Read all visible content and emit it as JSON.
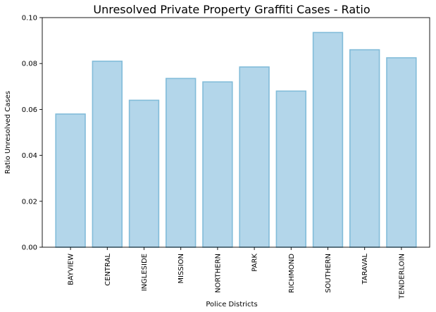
{
  "chart_data": {
    "type": "bar",
    "title": "Unresolved Private Property Graffiti Cases - Ratio",
    "xlabel": "Police Districts",
    "ylabel": "Ratio Unresolved Cases",
    "categories": [
      "BAYVIEW",
      "CENTRAL",
      "INGLESIDE",
      "MISSION",
      "NORTHERN",
      "PARK",
      "RICHMOND",
      "SOUTHERN",
      "TARAVAL",
      "TENDERLOIN"
    ],
    "values": [
      0.058,
      0.081,
      0.064,
      0.0735,
      0.072,
      0.0785,
      0.068,
      0.0935,
      0.086,
      0.0825
    ],
    "ylim": [
      0,
      0.1
    ],
    "yticks": [
      "0.00",
      "0.02",
      "0.04",
      "0.06",
      "0.08",
      "0.10"
    ],
    "grid": false,
    "colors": {
      "bar_fill": "#b3d6ea",
      "bar_edge": "#82bcd9"
    }
  }
}
